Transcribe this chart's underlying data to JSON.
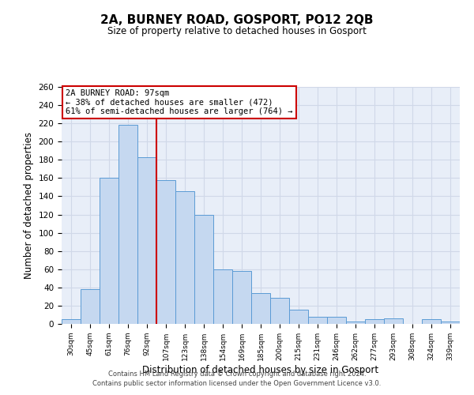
{
  "title": "2A, BURNEY ROAD, GOSPORT, PO12 2QB",
  "subtitle": "Size of property relative to detached houses in Gosport",
  "xlabel": "Distribution of detached houses by size in Gosport",
  "ylabel": "Number of detached properties",
  "categories": [
    "30sqm",
    "45sqm",
    "61sqm",
    "76sqm",
    "92sqm",
    "107sqm",
    "123sqm",
    "138sqm",
    "154sqm",
    "169sqm",
    "185sqm",
    "200sqm",
    "215sqm",
    "231sqm",
    "246sqm",
    "262sqm",
    "277sqm",
    "293sqm",
    "308sqm",
    "324sqm",
    "339sqm"
  ],
  "values": [
    5,
    38,
    160,
    218,
    183,
    158,
    146,
    120,
    60,
    58,
    34,
    29,
    16,
    8,
    8,
    3,
    5,
    6,
    0,
    5,
    3
  ],
  "bar_color": "#c5d8f0",
  "bar_edge_color": "#5b9bd5",
  "marker_label": "2A BURNEY ROAD: 97sqm",
  "annotation_line1": "← 38% of detached houses are smaller (472)",
  "annotation_line2": "61% of semi-detached houses are larger (764) →",
  "vline_color": "#cc0000",
  "vline_x_index": 4.5,
  "ylim": [
    0,
    260
  ],
  "yticks": [
    0,
    20,
    40,
    60,
    80,
    100,
    120,
    140,
    160,
    180,
    200,
    220,
    240,
    260
  ],
  "grid_color": "#d0d8e8",
  "bg_color": "#e8eef8",
  "footer_line1": "Contains HM Land Registry data © Crown copyright and database right 2024.",
  "footer_line2": "Contains public sector information licensed under the Open Government Licence v3.0."
}
